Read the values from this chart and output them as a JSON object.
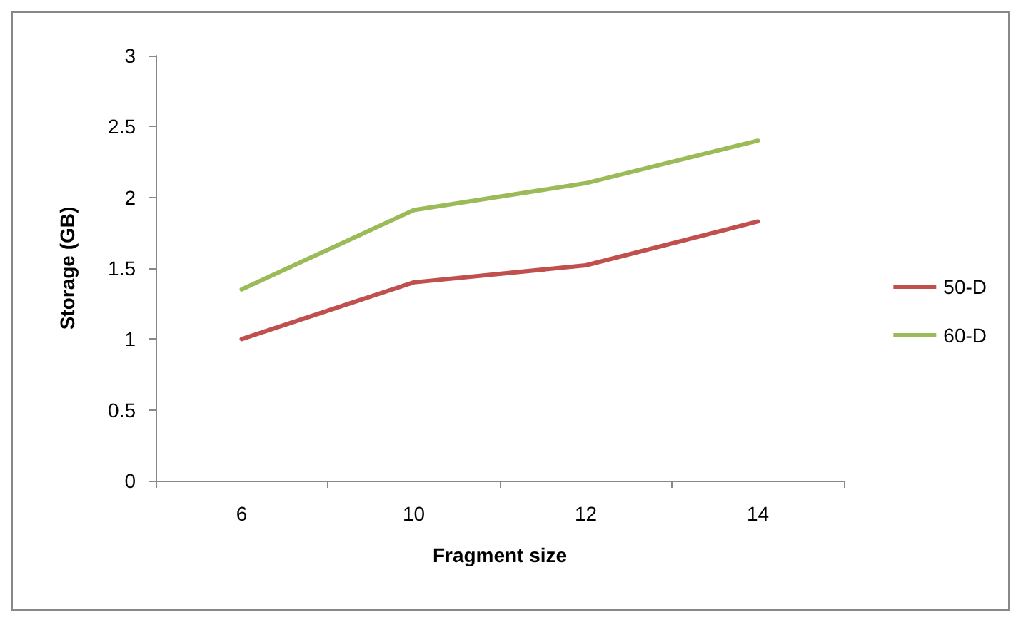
{
  "chart_data": {
    "type": "line",
    "xlabel": "Fragment size",
    "ylabel": "Storage (GB)",
    "categories": [
      "6",
      "10",
      "12",
      "14"
    ],
    "series": [
      {
        "name": "50-D",
        "color": "#c0504d",
        "values": [
          1.0,
          1.4,
          1.52,
          1.83
        ]
      },
      {
        "name": "60-D",
        "color": "#9bbb59",
        "values": [
          1.35,
          1.91,
          2.1,
          2.4
        ]
      }
    ],
    "ylim": [
      0,
      3
    ],
    "yticks": [
      0,
      0.5,
      1,
      1.5,
      2,
      2.5,
      3
    ],
    "grid": false,
    "legend": "right",
    "marker": "none",
    "line_style": "solid"
  }
}
